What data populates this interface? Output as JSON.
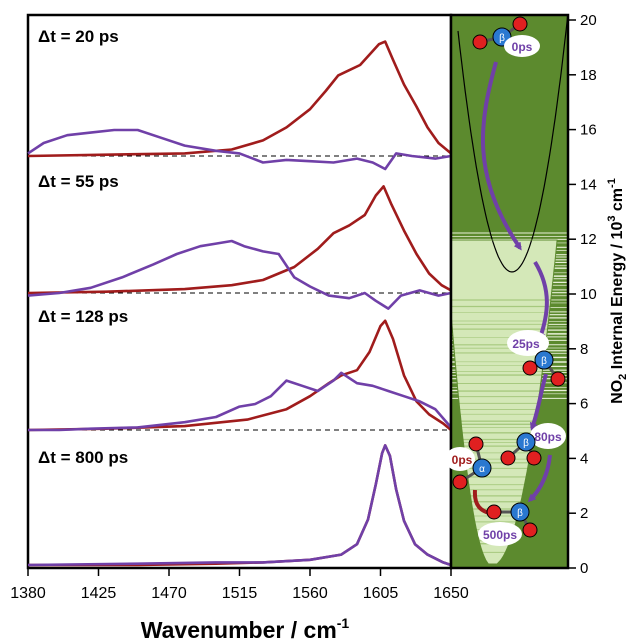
{
  "chart_data": {
    "type": "line",
    "xlabel": "Wavenumber / cm",
    "xlabel_sup": "-1",
    "xticks": [
      "1380",
      "1425",
      "1470",
      "1515",
      "1560",
      "1605",
      "1650"
    ],
    "xlim": [
      1380,
      1650
    ],
    "panels": [
      {
        "label": "Δt = 20 ps",
        "series": [
          {
            "color": "#a01c1c",
            "points": [
              [
                1380,
                0.0
              ],
              [
                1430,
                0.01
              ],
              [
                1480,
                0.02
              ],
              [
                1510,
                0.05
              ],
              [
                1530,
                0.12
              ],
              [
                1545,
                0.22
              ],
              [
                1560,
                0.36
              ],
              [
                1570,
                0.5
              ],
              [
                1578,
                0.62
              ],
              [
                1585,
                0.66
              ],
              [
                1592,
                0.7
              ],
              [
                1598,
                0.78
              ],
              [
                1604,
                0.86
              ],
              [
                1608,
                0.88
              ],
              [
                1613,
                0.74
              ],
              [
                1620,
                0.55
              ],
              [
                1628,
                0.38
              ],
              [
                1635,
                0.22
              ],
              [
                1642,
                0.1
              ],
              [
                1650,
                0.02
              ]
            ]
          },
          {
            "color": "#7040a8",
            "points": [
              [
                1380,
                0.02
              ],
              [
                1390,
                0.1
              ],
              [
                1405,
                0.16
              ],
              [
                1420,
                0.18
              ],
              [
                1435,
                0.2
              ],
              [
                1450,
                0.2
              ],
              [
                1465,
                0.14
              ],
              [
                1480,
                0.08
              ],
              [
                1500,
                0.04
              ],
              [
                1515,
                0.02
              ],
              [
                1530,
                -0.05
              ],
              [
                1545,
                -0.03
              ],
              [
                1560,
                -0.04
              ],
              [
                1575,
                -0.05
              ],
              [
                1590,
                -0.02
              ],
              [
                1600,
                -0.05
              ],
              [
                1608,
                -0.1
              ],
              [
                1615,
                0.02
              ],
              [
                1625,
                0.0
              ],
              [
                1640,
                -0.02
              ],
              [
                1650,
                0.0
              ]
            ]
          }
        ]
      },
      {
        "label": "Δt = 55 ps",
        "series": [
          {
            "color": "#a01c1c",
            "points": [
              [
                1380,
                0.0
              ],
              [
                1430,
                0.01
              ],
              [
                1480,
                0.03
              ],
              [
                1510,
                0.06
              ],
              [
                1530,
                0.1
              ],
              [
                1550,
                0.2
              ],
              [
                1565,
                0.34
              ],
              [
                1575,
                0.46
              ],
              [
                1585,
                0.52
              ],
              [
                1595,
                0.6
              ],
              [
                1602,
                0.75
              ],
              [
                1607,
                0.82
              ],
              [
                1612,
                0.68
              ],
              [
                1620,
                0.48
              ],
              [
                1628,
                0.3
              ],
              [
                1636,
                0.15
              ],
              [
                1644,
                0.06
              ],
              [
                1650,
                0.02
              ]
            ]
          },
          {
            "color": "#7040a8",
            "points": [
              [
                1380,
                -0.02
              ],
              [
                1400,
                0.0
              ],
              [
                1420,
                0.04
              ],
              [
                1440,
                0.12
              ],
              [
                1460,
                0.22
              ],
              [
                1475,
                0.3
              ],
              [
                1490,
                0.36
              ],
              [
                1500,
                0.38
              ],
              [
                1510,
                0.4
              ],
              [
                1518,
                0.36
              ],
              [
                1530,
                0.32
              ],
              [
                1540,
                0.3
              ],
              [
                1550,
                0.12
              ],
              [
                1560,
                0.05
              ],
              [
                1572,
                -0.02
              ],
              [
                1585,
                -0.04
              ],
              [
                1595,
                0.0
              ],
              [
                1602,
                -0.06
              ],
              [
                1610,
                -0.12
              ],
              [
                1618,
                -0.02
              ],
              [
                1630,
                0.02
              ],
              [
                1642,
                -0.02
              ],
              [
                1650,
                0.0
              ]
            ]
          }
        ]
      },
      {
        "label": "Δt = 128 ps",
        "series": [
          {
            "color": "#a01c1c",
            "points": [
              [
                1380,
                0.0
              ],
              [
                1430,
                0.01
              ],
              [
                1480,
                0.03
              ],
              [
                1520,
                0.08
              ],
              [
                1545,
                0.16
              ],
              [
                1560,
                0.26
              ],
              [
                1572,
                0.36
              ],
              [
                1580,
                0.42
              ],
              [
                1590,
                0.46
              ],
              [
                1598,
                0.6
              ],
              [
                1605,
                0.8
              ],
              [
                1608,
                0.84
              ],
              [
                1613,
                0.7
              ],
              [
                1620,
                0.42
              ],
              [
                1628,
                0.22
              ],
              [
                1636,
                0.12
              ],
              [
                1645,
                0.05
              ],
              [
                1650,
                0.0
              ]
            ]
          },
          {
            "color": "#7040a8",
            "points": [
              [
                1380,
                0.0
              ],
              [
                1400,
                0.0
              ],
              [
                1420,
                0.01
              ],
              [
                1450,
                0.02
              ],
              [
                1480,
                0.06
              ],
              [
                1500,
                0.1
              ],
              [
                1515,
                0.18
              ],
              [
                1525,
                0.2
              ],
              [
                1535,
                0.26
              ],
              [
                1545,
                0.38
              ],
              [
                1555,
                0.34
              ],
              [
                1565,
                0.3
              ],
              [
                1575,
                0.38
              ],
              [
                1580,
                0.44
              ],
              [
                1590,
                0.36
              ],
              [
                1600,
                0.34
              ],
              [
                1610,
                0.3
              ],
              [
                1620,
                0.26
              ],
              [
                1630,
                0.22
              ],
              [
                1640,
                0.16
              ],
              [
                1650,
                0.02
              ]
            ]
          }
        ]
      },
      {
        "label": "Δt = 800 ps",
        "series": [
          {
            "color": "#a01c1c",
            "points": [
              [
                1380,
                0.0
              ],
              [
                1450,
                0.0
              ],
              [
                1500,
                0.01
              ],
              [
                1530,
                0.02
              ],
              [
                1560,
                0.04
              ],
              [
                1580,
                0.08
              ],
              [
                1590,
                0.16
              ],
              [
                1597,
                0.35
              ],
              [
                1602,
                0.62
              ],
              [
                1606,
                0.86
              ],
              [
                1608,
                0.92
              ],
              [
                1611,
                0.84
              ],
              [
                1615,
                0.58
              ],
              [
                1620,
                0.34
              ],
              [
                1627,
                0.16
              ],
              [
                1635,
                0.08
              ],
              [
                1645,
                0.02
              ],
              [
                1650,
                0.0
              ]
            ]
          },
          {
            "color": "#7040a8",
            "points": [
              [
                1380,
                0.0
              ],
              [
                1450,
                0.01
              ],
              [
                1500,
                0.02
              ],
              [
                1530,
                0.02
              ],
              [
                1560,
                0.04
              ],
              [
                1580,
                0.08
              ],
              [
                1590,
                0.16
              ],
              [
                1597,
                0.35
              ],
              [
                1602,
                0.62
              ],
              [
                1606,
                0.86
              ],
              [
                1608,
                0.92
              ],
              [
                1611,
                0.84
              ],
              [
                1615,
                0.58
              ],
              [
                1620,
                0.34
              ],
              [
                1627,
                0.16
              ],
              [
                1635,
                0.08
              ],
              [
                1645,
                0.02
              ],
              [
                1650,
                0.0
              ]
            ]
          }
        ]
      }
    ],
    "energy_axis": {
      "label_prefix": "NO",
      "label_sub": "2",
      "label_mid": " Internal Energy / 10",
      "label_sup": "3",
      "label_unit": " cm",
      "label_sup2": "-1",
      "ylim": [
        0,
        20
      ],
      "ticks": [
        "0",
        "2",
        "4",
        "6",
        "8",
        "10",
        "12",
        "14",
        "16",
        "18",
        "20"
      ]
    },
    "time_labels": [
      "0ps",
      "25ps",
      "80ps",
      "0ps",
      "500ps"
    ],
    "atom_labels": [
      "β",
      "β",
      "β",
      "α"
    ]
  },
  "colors": {
    "red_series": "#a01c1c",
    "purple_series": "#7040a8",
    "green_dark": "#5c8a2e",
    "green_light": "#d4e8b8",
    "oxygen": "#e02020",
    "nitrogen": "#2a78d0"
  }
}
